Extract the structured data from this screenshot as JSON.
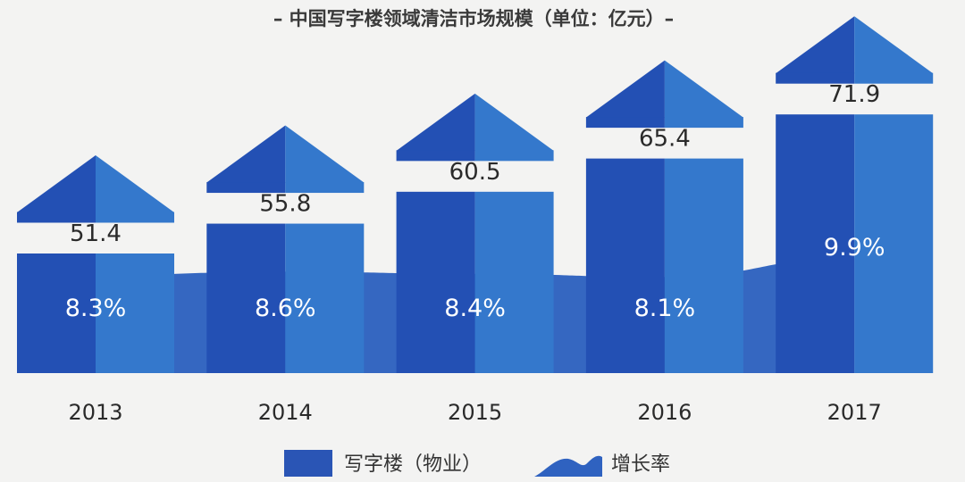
{
  "chart_data": {
    "type": "bar",
    "title": "– 中国写字楼领域清洁市场规模（单位：亿元）–",
    "categories": [
      "2013",
      "2014",
      "2015",
      "2016",
      "2017"
    ],
    "series": [
      {
        "name": "写字楼（物业）",
        "type": "bar",
        "values": [
          51.4,
          55.8,
          60.5,
          65.4,
          71.9
        ],
        "color": "#2350b4"
      },
      {
        "name": "增长率",
        "type": "area",
        "values": [
          8.3,
          8.6,
          8.4,
          8.1,
          9.9
        ],
        "labels": [
          "8.3%",
          "8.6%",
          "8.4%",
          "8.1%",
          "9.9%"
        ],
        "color": "#3478cc"
      }
    ],
    "value_labels": [
      "51.4",
      "55.8",
      "60.5",
      "65.4",
      "71.9"
    ],
    "grid": false,
    "legend_position": "bottom-center"
  },
  "legend": {
    "bar_label": "写字楼（物业）",
    "area_label": "增长率"
  },
  "colors": {
    "bar_left": "#2350b4",
    "bar_right": "#3478cc",
    "area": "#2a5fbe",
    "background": "#f3f3f2",
    "text": "#2a2a2a",
    "label_white": "#ffffff"
  }
}
